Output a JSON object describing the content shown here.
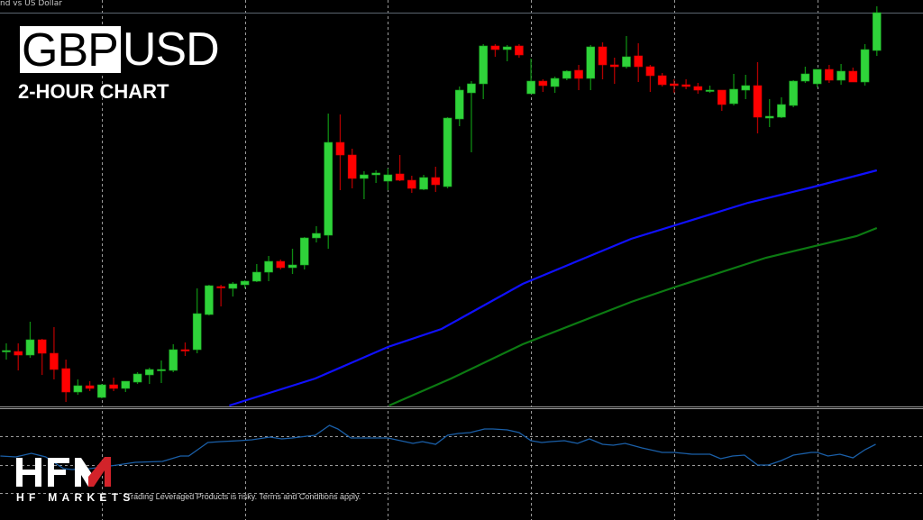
{
  "header": {
    "symbol_description": "nd vs US Dollar",
    "title_base": "GBP",
    "title_quote": "USD",
    "subtitle": "2-HOUR CHART"
  },
  "branding": {
    "logo_text": "HFM",
    "logo_subtitle": "HF MARKETS",
    "disclaimer": "Trading Leveraged Products is risky. Terms and Conditions apply."
  },
  "colors": {
    "background": "#000000",
    "bull_body": "#2fd33a",
    "bull_wick": "#0e8a12",
    "bear_body": "#ff0000",
    "bear_wick": "#b00000",
    "ma_fast": "#1010ff",
    "ma_slow": "#0c7a12",
    "indicator": "#1a5fa8",
    "grid": "#9a9a9a",
    "price_line": "#5c6670",
    "logo_accent": "#d2232a"
  },
  "chart_data": {
    "type": "candlestick",
    "title": "",
    "xlabel": "",
    "ylabel": "",
    "grid": true,
    "price_axis_visible": false,
    "note_units": "relative price levels (no price axis shown)",
    "ohlc": [
      [
        61,
        69,
        51,
        61
      ],
      [
        60,
        69,
        39,
        56
      ],
      [
        56,
        93,
        53,
        73
      ],
      [
        73,
        74,
        34,
        58
      ],
      [
        58,
        87,
        29,
        40
      ],
      [
        41,
        51,
        4,
        15
      ],
      [
        15,
        29,
        12,
        22
      ],
      [
        22,
        27,
        16,
        19
      ],
      [
        9,
        24,
        8,
        23
      ],
      [
        23,
        31,
        16,
        19
      ],
      [
        19,
        27,
        15,
        27
      ],
      [
        26,
        37,
        24,
        35
      ],
      [
        34,
        42,
        24,
        40
      ],
      [
        40,
        50,
        25,
        40
      ],
      [
        39,
        68,
        37,
        62
      ],
      [
        62,
        70,
        55,
        61
      ],
      [
        62,
        130,
        58,
        102
      ],
      [
        101,
        134,
        100,
        133
      ],
      [
        132,
        134,
        110,
        131
      ],
      [
        130,
        137,
        121,
        135
      ],
      [
        134,
        139,
        130,
        138
      ],
      [
        138,
        157,
        137,
        148
      ],
      [
        148,
        166,
        138,
        160
      ],
      [
        160,
        162,
        151,
        153
      ],
      [
        153,
        174,
        146,
        156
      ],
      [
        156,
        187,
        151,
        186
      ],
      [
        186,
        199,
        181,
        191
      ],
      [
        189,
        324,
        174,
        292
      ],
      [
        292,
        323,
        239,
        278
      ],
      [
        278,
        285,
        241,
        252
      ],
      [
        252,
        260,
        229,
        256
      ],
      [
        256,
        261,
        247,
        258
      ],
      [
        249,
        263,
        239,
        256
      ],
      [
        257,
        278,
        249,
        250
      ],
      [
        250,
        255,
        236,
        241
      ],
      [
        240,
        256,
        239,
        253
      ],
      [
        253,
        265,
        237,
        245
      ],
      [
        243,
        320,
        241,
        319
      ],
      [
        318,
        354,
        310,
        350
      ],
      [
        347,
        360,
        281,
        357
      ],
      [
        357,
        401,
        340,
        399
      ],
      [
        399,
        401,
        387,
        395
      ],
      [
        395,
        400,
        382,
        398
      ],
      [
        399,
        401,
        386,
        389
      ],
      [
        346,
        385,
        346,
        360
      ],
      [
        360,
        362,
        348,
        355
      ],
      [
        354,
        365,
        347,
        363
      ],
      [
        363,
        372,
        361,
        371
      ],
      [
        372,
        378,
        350,
        363
      ],
      [
        363,
        400,
        350,
        398
      ],
      [
        398,
        403,
        362,
        378
      ],
      [
        378,
        386,
        357,
        376
      ],
      [
        376,
        410,
        374,
        387
      ],
      [
        388,
        402,
        359,
        376
      ],
      [
        376,
        378,
        348,
        366
      ],
      [
        366,
        369,
        354,
        356
      ],
      [
        357,
        362,
        347,
        355
      ],
      [
        356,
        362,
        351,
        354
      ],
      [
        354,
        358,
        346,
        350
      ],
      [
        350,
        355,
        347,
        350
      ],
      [
        350,
        350,
        327,
        334
      ],
      [
        335,
        368,
        333,
        351
      ],
      [
        350,
        367,
        340,
        355
      ],
      [
        355,
        381,
        302,
        320
      ],
      [
        319,
        340,
        309,
        321
      ],
      [
        320,
        342,
        319,
        334
      ],
      [
        333,
        361,
        331,
        360
      ],
      [
        360,
        376,
        358,
        368
      ],
      [
        357,
        373,
        353,
        373
      ],
      [
        373,
        378,
        358,
        361
      ],
      [
        361,
        379,
        356,
        371
      ],
      [
        371,
        375,
        359,
        359
      ],
      [
        359,
        401,
        355,
        395
      ],
      [
        394,
        443,
        388,
        436
      ]
    ],
    "current_price_level": 436,
    "moving_averages": [
      {
        "points": [
          [
            18.7,
            0
          ],
          [
            25.9,
            30
          ],
          [
            32,
            65
          ],
          [
            36.5,
            85
          ],
          [
            43.3,
            135
          ],
          [
            52.4,
            185
          ],
          [
            62.2,
            225
          ],
          [
            67.5,
            242
          ],
          [
            73,
            261
          ]
        ]
      },
      {
        "points": [
          [
            32.1,
            0
          ],
          [
            37.3,
            30
          ],
          [
            43.3,
            68
          ],
          [
            52.4,
            115
          ],
          [
            56.2,
            132
          ],
          [
            63.7,
            164
          ],
          [
            71.3,
            188
          ],
          [
            73,
            197
          ]
        ]
      }
    ],
    "indicator": {
      "levels": [
        63,
        31,
        0
      ],
      "points": [
        [
          -0.5,
          41
        ],
        [
          0.8,
          40
        ],
        [
          2.1,
          44
        ],
        [
          3.3,
          40
        ],
        [
          4.8,
          27
        ],
        [
          5.5,
          26
        ],
        [
          7.0,
          27
        ],
        [
          9.3,
          31
        ],
        [
          10.8,
          34
        ],
        [
          13.1,
          35
        ],
        [
          14.6,
          41
        ],
        [
          15.3,
          41
        ],
        [
          16.9,
          56
        ],
        [
          18.0,
          57
        ],
        [
          19.5,
          58
        ],
        [
          20.6,
          59
        ],
        [
          22.1,
          62
        ],
        [
          23.1,
          60
        ],
        [
          24.0,
          61
        ],
        [
          25.2,
          63
        ],
        [
          25.9,
          64
        ],
        [
          27.1,
          75
        ],
        [
          27.8,
          71
        ],
        [
          28.9,
          61
        ],
        [
          32.0,
          61
        ],
        [
          34.1,
          55
        ],
        [
          34.9,
          57
        ],
        [
          36.0,
          54
        ],
        [
          37.0,
          64
        ],
        [
          37.9,
          66
        ],
        [
          38.9,
          67
        ],
        [
          40.1,
          71
        ],
        [
          40.8,
          71
        ],
        [
          42.0,
          70
        ],
        [
          43.0,
          67
        ],
        [
          44.0,
          58
        ],
        [
          44.9,
          56
        ],
        [
          45.7,
          57
        ],
        [
          46.8,
          58
        ],
        [
          47.9,
          55
        ],
        [
          48.9,
          60
        ],
        [
          50.0,
          54
        ],
        [
          50.9,
          53
        ],
        [
          51.9,
          55
        ],
        [
          53.3,
          50
        ],
        [
          55.0,
          45
        ],
        [
          56.0,
          45
        ],
        [
          57.5,
          43
        ],
        [
          59.0,
          43
        ],
        [
          59.9,
          38
        ],
        [
          60.9,
          41
        ],
        [
          61.9,
          42
        ],
        [
          63.0,
          31
        ],
        [
          63.9,
          31
        ],
        [
          65.0,
          36
        ],
        [
          66.0,
          42
        ],
        [
          67.5,
          45
        ],
        [
          68.0,
          45
        ],
        [
          68.9,
          41
        ],
        [
          69.9,
          43
        ],
        [
          71.0,
          39
        ],
        [
          72.0,
          48
        ],
        [
          72.9,
          54
        ]
      ]
    },
    "vertical_grid_every_n_candles": 12
  }
}
